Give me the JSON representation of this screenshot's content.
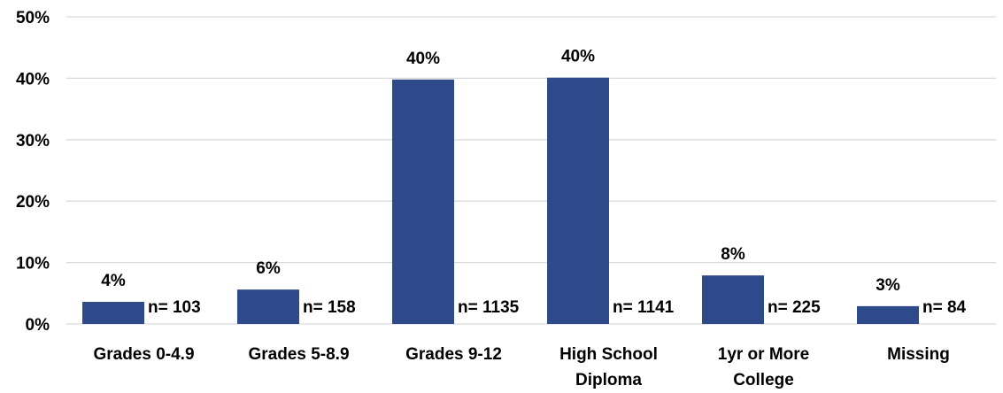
{
  "chart_data": {
    "type": "bar",
    "title": "",
    "xlabel": "",
    "ylabel": "",
    "ylim": [
      0,
      50
    ],
    "y_ticks": [
      "0%",
      "10%",
      "20%",
      "30%",
      "40%",
      "50%"
    ],
    "y_tick_values": [
      0,
      10,
      20,
      30,
      40,
      50
    ],
    "categories": [
      [
        "Grades 0-4.9"
      ],
      [
        "Grades 5-8.9"
      ],
      [
        "Grades 9-12"
      ],
      [
        "High School",
        "Diploma"
      ],
      [
        "1yr or More",
        "College"
      ],
      [
        "Missing"
      ]
    ],
    "values": [
      3.6,
      5.6,
      39.8,
      40.1,
      7.9,
      2.9
    ],
    "data_labels": [
      "4%",
      "6%",
      "40%",
      "40%",
      "8%",
      "3%"
    ],
    "n_labels": [
      "n= 103",
      "n= 158",
      "n= 1135",
      "n= 1141",
      "n= 225",
      "n= 84"
    ],
    "grid": true,
    "legend": "none",
    "colors": {
      "bar": "#2E4A8B",
      "grid": "#d9d9d9"
    }
  }
}
